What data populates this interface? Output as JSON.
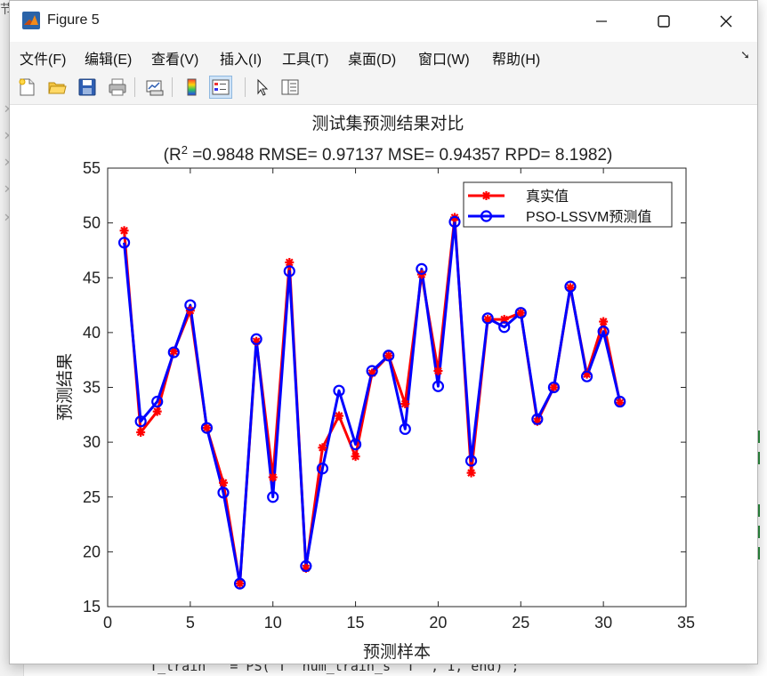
{
  "window": {
    "title": "Figure 5"
  },
  "menu": [
    {
      "label": "文件(F)"
    },
    {
      "label": "编辑(E)"
    },
    {
      "label": "查看(V)"
    },
    {
      "label": "插入(I)"
    },
    {
      "label": "工具(T)"
    },
    {
      "label": "桌面(D)"
    },
    {
      "label": "窗口(W)"
    },
    {
      "label": "帮助(H)"
    }
  ],
  "toolbar": [
    {
      "icon": "new-figure-icon"
    },
    {
      "icon": "open-file-icon"
    },
    {
      "icon": "save-icon"
    },
    {
      "icon": "print-icon"
    },
    {
      "icon": "link-plot-icon"
    },
    {
      "icon": "colorbar-icon"
    },
    {
      "icon": "legend-icon"
    },
    {
      "icon": "pointer-icon"
    },
    {
      "icon": "property-inspector-icon"
    }
  ],
  "background": {
    "left_chunk": "节",
    "bottom_code": "  T_train   = PS( T  num_train_s  T  , 1, end) ;"
  },
  "chart_data": {
    "type": "line",
    "title": "测试集预测结果对比",
    "subtitle_prefix": "(R",
    "subtitle_sup": "2",
    "subtitle_rest": " =0.9848 RMSE= 0.97137 MSE= 0.94357 RPD= 8.1982)",
    "xlabel": "预测样本",
    "ylabel": "预测结果",
    "xlim": [
      0,
      35
    ],
    "ylim": [
      15,
      55
    ],
    "xticks": [
      0,
      5,
      10,
      15,
      20,
      25,
      30,
      35
    ],
    "yticks": [
      15,
      20,
      25,
      30,
      35,
      40,
      45,
      50,
      55
    ],
    "grid": false,
    "legend_position": "top-right",
    "x": [
      1,
      2,
      3,
      4,
      5,
      6,
      7,
      8,
      9,
      10,
      11,
      12,
      13,
      14,
      15,
      16,
      17,
      18,
      19,
      20,
      21,
      22,
      23,
      24,
      25,
      26,
      27,
      28,
      29,
      30,
      31
    ],
    "series": [
      {
        "name": "真实值",
        "color": "#ff0000",
        "marker": "asterisk",
        "values": [
          49.3,
          30.9,
          32.8,
          38.3,
          42.0,
          31.3,
          26.3,
          17.1,
          39.2,
          26.8,
          46.4,
          18.5,
          29.5,
          32.4,
          28.7,
          36.3,
          37.9,
          33.5,
          45.3,
          36.5,
          50.5,
          27.2,
          41.2,
          41.2,
          41.8,
          31.9,
          35.0,
          44.1,
          36.2,
          41.0,
          33.6
        ]
      },
      {
        "name": "PSO-LSSVM预测值",
        "color": "#0000ff",
        "marker": "circle",
        "values": [
          48.2,
          31.9,
          33.7,
          38.2,
          42.5,
          31.3,
          25.4,
          17.1,
          39.4,
          25.0,
          45.6,
          18.7,
          27.6,
          34.7,
          29.8,
          36.5,
          37.9,
          31.2,
          45.8,
          35.1,
          50.1,
          28.3,
          41.3,
          40.5,
          41.8,
          32.1,
          35.0,
          44.2,
          36.0,
          40.1,
          33.7
        ]
      }
    ]
  }
}
